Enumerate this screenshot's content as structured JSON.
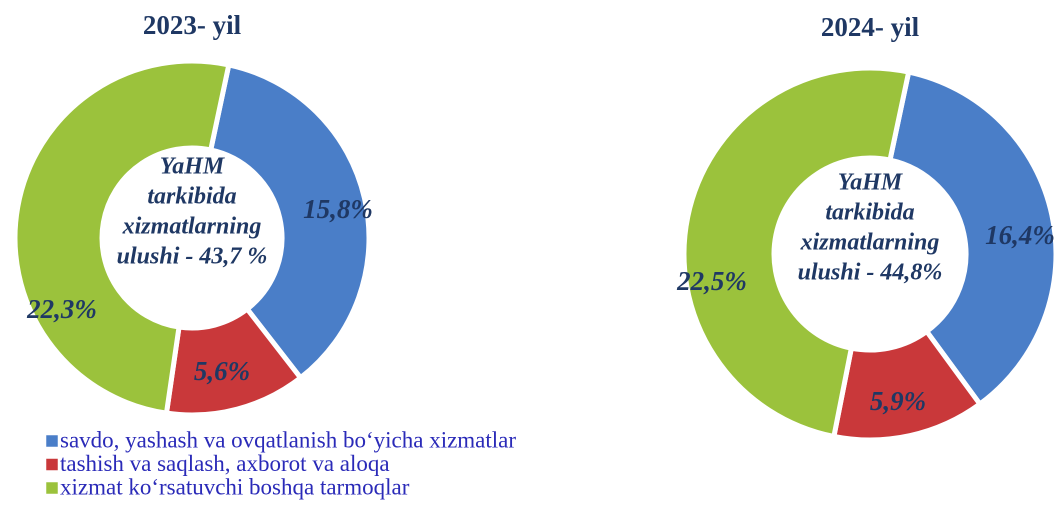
{
  "chart_data": [
    {
      "type": "pie",
      "donut": true,
      "title": "2023- yil",
      "categories": [
        "savdo, yashash va ovqatlanish bo‘yicha xizmatlar",
        "tashish va saqlash, axborot va aloqa",
        "xizmat ko‘rsatuvchi boshqa tarmoqlar"
      ],
      "values": [
        15.8,
        5.6,
        22.3
      ],
      "value_labels": [
        "15,8%",
        "5,6%",
        "22,3%"
      ],
      "colors": [
        "#4a7ec8",
        "#c9383a",
        "#9bc23c"
      ],
      "center_text": [
        "YaHM",
        "tarkibida",
        "xizmatlarning",
        "ulushi - 43,7 %"
      ]
    },
    {
      "type": "pie",
      "donut": true,
      "title": "2024- yil",
      "values": [
        16.4,
        5.9,
        22.5
      ],
      "value_labels": [
        "16,4%",
        "5,9%",
        "22,5%"
      ],
      "colors": [
        "#4a7ec8",
        "#c9383a",
        "#9bc23c"
      ],
      "center_text": [
        "YaHM",
        "tarkibida",
        "xizmatlarning",
        "ulushi - 44,8%"
      ]
    }
  ]
}
